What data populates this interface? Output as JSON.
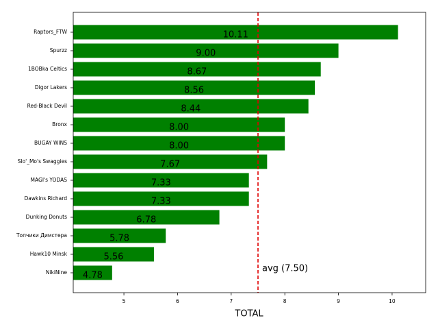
{
  "chart_data": {
    "type": "barh",
    "categories": [
      "Raptors_FTW",
      "Spurzz",
      "1BOBka Celtics",
      "Digor Lakers",
      "Red-Black Devil",
      "Bronx",
      "BUGAY WINS",
      "Slo'_Mo's Swaggies",
      "MAGI's YODAS",
      "Dawkins Richard",
      "Dunking Donuts",
      "Топчики Димстера",
      "Hawk10 Minsk",
      "NikiNine"
    ],
    "values": [
      10.11,
      9.0,
      8.67,
      8.56,
      8.44,
      8.0,
      8.0,
      7.67,
      7.33,
      7.33,
      6.78,
      5.78,
      5.56,
      4.78
    ],
    "value_labels": [
      "10.11",
      "9.00",
      "8.67",
      "8.56",
      "8.44",
      "8.00",
      "8.00",
      "7.67",
      "7.33",
      "7.33",
      "6.78",
      "5.78",
      "5.56",
      "4.78"
    ],
    "color": "#008000",
    "xlabel": "TOTAL",
    "xlim": [
      4.055,
      10.626
    ],
    "xticks": [
      5,
      6,
      7,
      8,
      9,
      10
    ],
    "reference_line": {
      "value": 7.5,
      "label": "avg (7.50)",
      "color": "#e00000"
    }
  }
}
